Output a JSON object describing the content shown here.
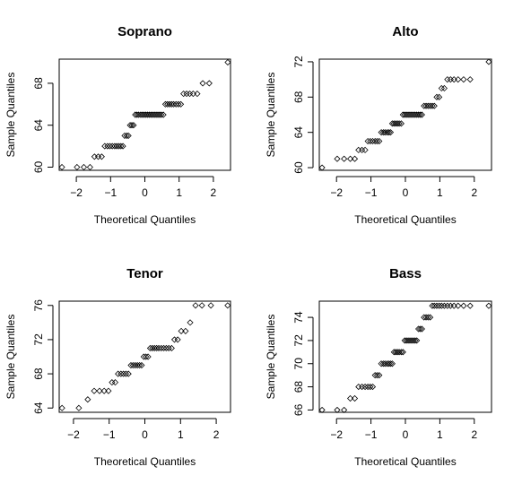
{
  "chart_data": [
    {
      "type": "scatter",
      "title": "Soprano",
      "xlabel": "Theoretical Quantiles",
      "ylabel": "Sample Quantiles",
      "xlim": [
        -2.5,
        2.5
      ],
      "ylim": [
        59.7,
        70.3
      ],
      "xticks": [
        -2,
        -1,
        0,
        1,
        2
      ],
      "yticks": [
        60,
        64,
        68
      ],
      "grid": false,
      "series": [
        {
          "x": [
            -2.42,
            -1.98,
            -1.78,
            -1.6,
            -1.47,
            -1.36,
            -1.26,
            -1.17,
            -1.09,
            -1.02,
            -0.95,
            -0.88,
            -0.82,
            -0.76,
            -0.7,
            -0.64,
            -0.59,
            -0.53,
            -0.48,
            -0.43,
            -0.38,
            -0.33,
            -0.28,
            -0.23,
            -0.18,
            -0.12,
            -0.07,
            -0.02,
            0.03,
            0.08,
            0.13,
            0.18,
            0.23,
            0.28,
            0.33,
            0.38,
            0.43,
            0.48,
            0.54,
            0.6,
            0.66,
            0.72,
            0.78,
            0.84,
            0.91,
            0.98,
            1.05,
            1.13,
            1.22,
            1.31,
            1.41,
            1.53,
            1.69,
            1.88,
            2.42
          ],
          "y": [
            60,
            60,
            60,
            60,
            61,
            61,
            61,
            62,
            62,
            62,
            62,
            62,
            62,
            62,
            62,
            62,
            63,
            63,
            63,
            64,
            64,
            64,
            65,
            65,
            65,
            65,
            65,
            65,
            65,
            65,
            65,
            65,
            65,
            65,
            65,
            65,
            65,
            65,
            65,
            66,
            66,
            66,
            66,
            66,
            66,
            66,
            66,
            67,
            67,
            67,
            67,
            67,
            68,
            68,
            70
          ]
        }
      ]
    },
    {
      "type": "scatter",
      "title": "Alto",
      "xlabel": "Theoretical Quantiles",
      "ylabel": "Sample Quantiles",
      "xlim": [
        -2.5,
        2.5
      ],
      "ylim": [
        59.7,
        72.3
      ],
      "xticks": [
        -2,
        -1,
        0,
        1,
        2
      ],
      "yticks": [
        60,
        64,
        68,
        72
      ],
      "grid": false,
      "series": [
        {
          "x": [
            -2.42,
            -1.98,
            -1.78,
            -1.6,
            -1.47,
            -1.36,
            -1.26,
            -1.17,
            -1.09,
            -1.02,
            -0.95,
            -0.88,
            -0.82,
            -0.76,
            -0.7,
            -0.64,
            -0.59,
            -0.53,
            -0.48,
            -0.43,
            -0.38,
            -0.33,
            -0.28,
            -0.23,
            -0.18,
            -0.12,
            -0.07,
            -0.02,
            0.03,
            0.08,
            0.13,
            0.18,
            0.23,
            0.28,
            0.33,
            0.38,
            0.43,
            0.48,
            0.54,
            0.6,
            0.66,
            0.72,
            0.78,
            0.84,
            0.91,
            0.98,
            1.05,
            1.13,
            1.22,
            1.31,
            1.41,
            1.53,
            1.69,
            1.88,
            2.42
          ],
          "y": [
            60,
            61,
            61,
            61,
            61,
            62,
            62,
            62,
            63,
            63,
            63,
            63,
            63,
            63,
            64,
            64,
            64,
            64,
            64,
            64,
            65,
            65,
            65,
            65,
            65,
            65,
            66,
            66,
            66,
            66,
            66,
            66,
            66,
            66,
            66,
            66,
            66,
            66,
            67,
            67,
            67,
            67,
            67,
            67,
            68,
            68,
            69,
            69,
            70,
            70,
            70,
            70,
            70,
            70,
            72
          ]
        }
      ]
    },
    {
      "type": "scatter",
      "title": "Tenor",
      "xlabel": "Theoretical Quantiles",
      "ylabel": "Sample Quantiles",
      "xlim": [
        -2.4,
        2.4
      ],
      "ylim": [
        63.5,
        76.5
      ],
      "xticks": [
        -2,
        -1,
        0,
        1,
        2
      ],
      "yticks": [
        64,
        68,
        72,
        76
      ],
      "grid": false,
      "series": [
        {
          "x": [
            -2.32,
            -1.85,
            -1.6,
            -1.42,
            -1.27,
            -1.14,
            -1.02,
            -0.92,
            -0.83,
            -0.75,
            -0.67,
            -0.6,
            -0.53,
            -0.46,
            -0.39,
            -0.33,
            -0.27,
            -0.21,
            -0.15,
            -0.09,
            -0.03,
            0.03,
            0.09,
            0.15,
            0.21,
            0.27,
            0.33,
            0.39,
            0.46,
            0.53,
            0.6,
            0.67,
            0.75,
            0.83,
            0.92,
            1.02,
            1.14,
            1.27,
            1.42,
            1.6,
            1.85,
            2.32
          ],
          "y": [
            64,
            64,
            65,
            66,
            66,
            66,
            66,
            67,
            67,
            68,
            68,
            68,
            68,
            68,
            69,
            69,
            69,
            69,
            69,
            69,
            70,
            70,
            70,
            71,
            71,
            71,
            71,
            71,
            71,
            71,
            71,
            71,
            71,
            72,
            72,
            73,
            73,
            74,
            76,
            76,
            76,
            76
          ]
        }
      ]
    },
    {
      "type": "scatter",
      "title": "Bass",
      "xlabel": "Theoretical Quantiles",
      "ylabel": "Sample Quantiles",
      "xlim": [
        -2.5,
        2.5
      ],
      "ylim": [
        65.8,
        75.4
      ],
      "xticks": [
        -2,
        -1,
        0,
        1,
        2
      ],
      "yticks": [
        66,
        68,
        70,
        72,
        74
      ],
      "grid": false,
      "series": [
        {
          "x": [
            -2.42,
            -1.98,
            -1.78,
            -1.6,
            -1.47,
            -1.36,
            -1.26,
            -1.17,
            -1.09,
            -1.02,
            -0.95,
            -0.88,
            -0.82,
            -0.76,
            -0.7,
            -0.64,
            -0.59,
            -0.53,
            -0.48,
            -0.43,
            -0.38,
            -0.33,
            -0.28,
            -0.23,
            -0.18,
            -0.12,
            -0.07,
            -0.02,
            0.03,
            0.08,
            0.13,
            0.18,
            0.23,
            0.28,
            0.33,
            0.38,
            0.43,
            0.48,
            0.54,
            0.6,
            0.66,
            0.72,
            0.78,
            0.84,
            0.91,
            0.98,
            1.05,
            1.13,
            1.22,
            1.31,
            1.41,
            1.53,
            1.69,
            1.88,
            2.42
          ],
          "y": [
            66,
            66,
            66,
            67,
            67,
            68,
            68,
            68,
            68,
            68,
            68,
            69,
            69,
            69,
            70,
            70,
            70,
            70,
            70,
            70,
            70,
            71,
            71,
            71,
            71,
            71,
            71,
            72,
            72,
            72,
            72,
            72,
            72,
            72,
            72,
            73,
            73,
            73,
            74,
            74,
            74,
            74,
            75,
            75,
            75,
            75,
            75,
            75,
            75,
            75,
            75,
            75,
            75,
            75,
            75
          ]
        }
      ]
    }
  ]
}
